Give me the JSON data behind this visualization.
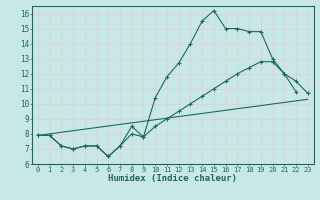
{
  "xlabel": "Humidex (Indice chaleur)",
  "bg_color": "#c8e8e8",
  "grid_color": "#d0e8e8",
  "line_color": "#1a6a5a",
  "xlim": [
    -0.5,
    23.5
  ],
  "ylim": [
    6,
    16.5
  ],
  "xticks": [
    0,
    1,
    2,
    3,
    4,
    5,
    6,
    7,
    8,
    9,
    10,
    11,
    12,
    13,
    14,
    15,
    16,
    17,
    18,
    19,
    20,
    21,
    22,
    23
  ],
  "yticks": [
    6,
    7,
    8,
    9,
    10,
    11,
    12,
    13,
    14,
    15,
    16
  ],
  "line1_x": [
    0,
    1,
    2,
    3,
    4,
    5,
    6,
    7,
    8,
    9,
    10,
    11,
    12,
    13,
    14,
    15,
    16,
    17,
    18,
    19,
    20,
    21,
    22
  ],
  "line1_y": [
    7.9,
    7.9,
    7.2,
    7.0,
    7.2,
    7.2,
    6.5,
    7.2,
    8.5,
    7.8,
    10.4,
    11.8,
    12.7,
    14.0,
    15.5,
    16.2,
    15.0,
    15.0,
    14.8,
    14.8,
    13.0,
    12.0,
    10.8
  ],
  "line2_x": [
    0,
    1,
    2,
    3,
    4,
    5,
    6,
    7,
    8,
    9,
    10,
    11,
    12,
    13,
    14,
    15,
    16,
    17,
    18,
    19,
    20,
    21,
    22,
    23
  ],
  "line2_y": [
    7.9,
    7.9,
    7.2,
    7.0,
    7.2,
    7.2,
    6.5,
    7.2,
    8.0,
    7.8,
    8.5,
    9.0,
    9.5,
    10.0,
    10.5,
    11.0,
    11.5,
    12.0,
    12.4,
    12.8,
    12.8,
    12.0,
    11.5,
    10.7
  ],
  "line3_x": [
    0,
    23
  ],
  "line3_y": [
    7.9,
    10.3
  ]
}
